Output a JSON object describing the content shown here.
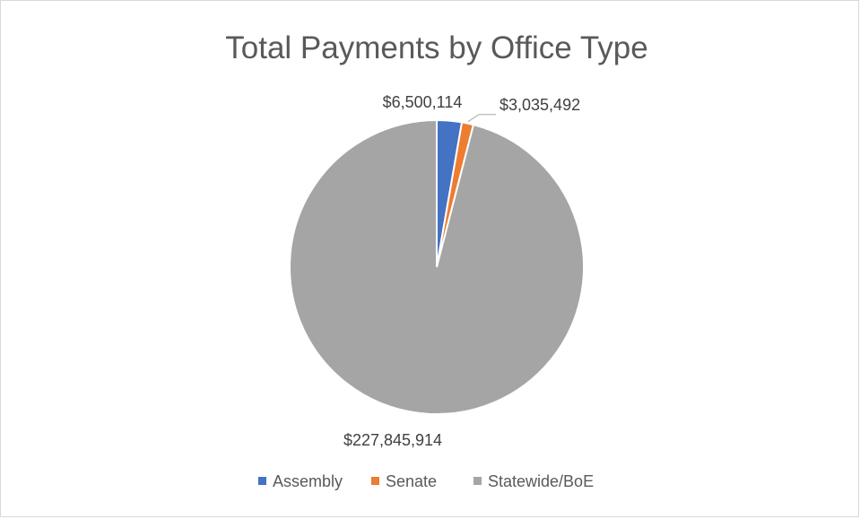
{
  "chart_data": {
    "type": "pie",
    "title": "Total Payments by Office Type",
    "categories": [
      "Assembly",
      "Senate",
      "Statewide/BoE"
    ],
    "values": [
      6500114,
      3035492,
      227845914
    ],
    "data_labels": [
      "$6,500,114",
      "$3,035,492",
      "$227,845,914"
    ],
    "colors": [
      "#4472c4",
      "#ed7d31",
      "#a5a5a5"
    ],
    "legend_position": "bottom"
  }
}
